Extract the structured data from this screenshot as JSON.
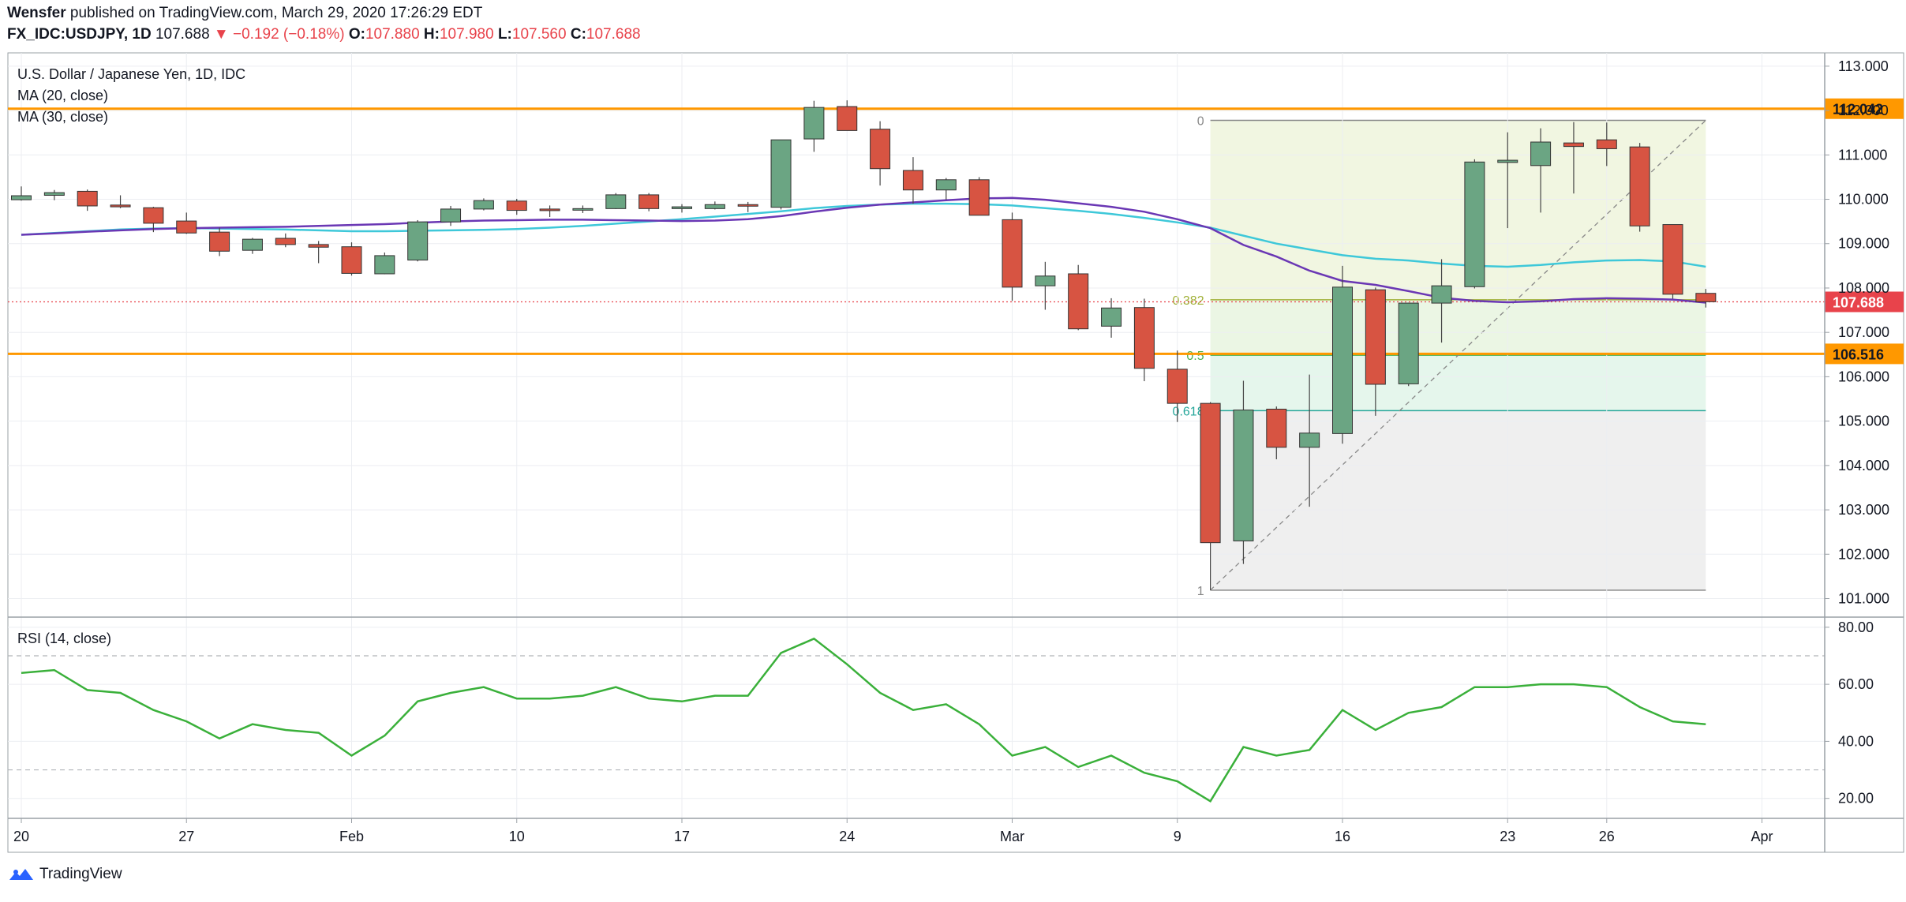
{
  "header": {
    "publisher": "Wensfer",
    "published_text": "published on TradingView.com, March 29, 2020 17:26:29 EDT",
    "symbol": "FX_IDC:USDJPY, 1D",
    "last": "107.688",
    "change_arrow": "▼",
    "change": "−0.192 (−0.18%)",
    "o_label": "O:",
    "o": "107.880",
    "h_label": "H:",
    "h": "107.980",
    "l_label": "L:",
    "l": "107.560",
    "c_label": "C:",
    "c": "107.688"
  },
  "legend": {
    "title": "U.S. Dollar / Japanese Yen, 1D, IDC",
    "ma20": "MA (20, close)",
    "ma30": "MA (30, close)",
    "rsi": "RSI (14, close)"
  },
  "footer": {
    "brand": "TradingView"
  },
  "colors": {
    "up": "#6ba583",
    "down": "#d75442",
    "ma20": "#3ec8d9",
    "ma30": "#6a37b4",
    "rsi": "#3ab03a",
    "hline": "#ff9800",
    "price_label": "#e8434b"
  },
  "chart_data": [
    {
      "type": "candlestick",
      "title": "U.S. Dollar / Japanese Yen, 1D, IDC",
      "ylim": [
        100.6,
        113.3
      ],
      "y_ticks": [
        "113.000",
        "112.000",
        "111.000",
        "110.000",
        "109.000",
        "108.000",
        "107.000",
        "106.000",
        "105.000",
        "104.000",
        "103.000",
        "102.000",
        "101.000"
      ],
      "x_ticks": [
        "20",
        "27",
        "Feb",
        "10",
        "17",
        "24",
        "Mar",
        "9",
        "16",
        "23",
        "26",
        "Apr"
      ],
      "x_tick_index": [
        0,
        5,
        10,
        15,
        20,
        25,
        30,
        35,
        40,
        45,
        48,
        52.7
      ],
      "ohlc": [
        [
          109.99,
          110.29,
          109.97,
          110.08
        ],
        [
          110.09,
          110.21,
          109.98,
          110.15
        ],
        [
          110.18,
          110.22,
          109.74,
          109.85
        ],
        [
          109.87,
          110.09,
          109.8,
          109.83
        ],
        [
          109.81,
          109.83,
          109.26,
          109.46
        ],
        [
          109.51,
          109.7,
          109.22,
          109.24
        ],
        [
          109.26,
          109.36,
          108.72,
          108.83
        ],
        [
          108.85,
          109.13,
          108.77,
          109.1
        ],
        [
          109.12,
          109.23,
          108.92,
          108.98
        ],
        [
          108.98,
          109.06,
          108.56,
          108.92
        ],
        [
          108.93,
          109.03,
          108.28,
          108.33
        ],
        [
          108.32,
          108.8,
          108.31,
          108.73
        ],
        [
          108.63,
          109.53,
          108.6,
          109.49
        ],
        [
          109.49,
          109.85,
          109.4,
          109.78
        ],
        [
          109.78,
          110.02,
          109.75,
          109.97
        ],
        [
          109.96,
          110.01,
          109.65,
          109.75
        ],
        [
          109.78,
          109.86,
          109.6,
          109.76
        ],
        [
          109.76,
          109.86,
          109.69,
          109.79
        ],
        [
          109.79,
          110.14,
          109.78,
          110.1
        ],
        [
          110.1,
          110.14,
          109.73,
          109.79
        ],
        [
          109.79,
          109.89,
          109.7,
          109.83
        ],
        [
          109.79,
          109.95,
          109.77,
          109.88
        ],
        [
          109.88,
          109.94,
          109.71,
          109.86
        ],
        [
          109.82,
          111.34,
          109.77,
          111.34
        ],
        [
          111.36,
          112.22,
          111.07,
          112.07
        ],
        [
          112.09,
          112.23,
          111.55,
          111.55
        ],
        [
          111.58,
          111.76,
          110.31,
          110.69
        ],
        [
          110.65,
          110.95,
          109.9,
          110.21
        ],
        [
          110.21,
          110.48,
          109.99,
          110.44
        ],
        [
          110.44,
          110.5,
          109.64,
          109.64
        ],
        [
          109.54,
          109.7,
          107.71,
          108.02
        ],
        [
          108.05,
          108.59,
          107.51,
          108.27
        ],
        [
          108.32,
          108.52,
          107.05,
          107.08
        ],
        [
          107.14,
          107.77,
          106.88,
          107.55
        ],
        [
          107.56,
          107.76,
          105.9,
          106.19
        ],
        [
          106.17,
          106.59,
          104.98,
          105.4
        ],
        [
          105.4,
          105.43,
          101.19,
          102.26
        ],
        [
          102.3,
          105.91,
          101.78,
          105.25
        ],
        [
          105.27,
          105.33,
          104.14,
          104.41
        ],
        [
          104.41,
          106.05,
          103.07,
          104.73
        ],
        [
          104.72,
          108.5,
          104.49,
          108.02
        ],
        [
          107.96,
          108.01,
          105.12,
          105.83
        ],
        [
          105.84,
          107.67,
          105.79,
          107.66
        ],
        [
          107.66,
          108.65,
          106.77,
          108.05
        ],
        [
          108.03,
          110.9,
          107.99,
          110.84
        ],
        [
          110.83,
          111.51,
          109.35,
          110.88
        ],
        [
          110.76,
          111.6,
          109.7,
          111.29
        ],
        [
          111.27,
          111.74,
          110.13,
          111.19
        ],
        [
          111.34,
          111.73,
          110.75,
          111.14
        ],
        [
          111.18,
          111.27,
          109.27,
          109.4
        ],
        [
          109.43,
          109.43,
          107.76,
          107.86
        ],
        [
          107.88,
          107.98,
          107.56,
          107.69
        ]
      ],
      "ma20": [
        109.2,
        109.24,
        109.28,
        109.32,
        109.34,
        109.35,
        109.34,
        109.33,
        109.32,
        109.3,
        109.28,
        109.28,
        109.29,
        109.3,
        109.31,
        109.33,
        109.36,
        109.4,
        109.45,
        109.5,
        109.55,
        109.61,
        109.67,
        109.73,
        109.8,
        109.85,
        109.88,
        109.9,
        109.9,
        109.89,
        109.86,
        109.8,
        109.74,
        109.67,
        109.58,
        109.48,
        109.36,
        109.18,
        109.0,
        108.87,
        108.74,
        108.66,
        108.62,
        108.55,
        108.5,
        108.48,
        108.52,
        108.58,
        108.62,
        108.63,
        108.6,
        108.48
      ],
      "ma30": [
        109.2,
        109.23,
        109.27,
        109.3,
        109.33,
        109.35,
        109.36,
        109.37,
        109.38,
        109.4,
        109.42,
        109.44,
        109.47,
        109.5,
        109.52,
        109.53,
        109.54,
        109.54,
        109.53,
        109.52,
        109.51,
        109.52,
        109.55,
        109.62,
        109.72,
        109.81,
        109.88,
        109.93,
        109.98,
        110.02,
        110.03,
        109.99,
        109.91,
        109.83,
        109.72,
        109.55,
        109.35,
        108.97,
        108.71,
        108.39,
        108.16,
        108.07,
        107.93,
        107.78,
        107.71,
        107.68,
        107.7,
        107.75,
        107.77,
        107.76,
        107.74,
        107.67
      ],
      "horizontal_lines": [
        {
          "value": 112.042,
          "label": "112.042"
        },
        {
          "value": 106.516,
          "label": "106.516"
        }
      ],
      "last_price": {
        "value": 107.688,
        "label": "107.688"
      },
      "fibonacci": {
        "from_index": 36,
        "to_index": 51,
        "high": 111.78,
        "low": 101.19,
        "levels": [
          {
            "ratio": 0,
            "label": "0"
          },
          {
            "ratio": 0.382,
            "label": "0.382"
          },
          {
            "ratio": 0.5,
            "label": "0.5"
          },
          {
            "ratio": 0.618,
            "label": "0.618"
          },
          {
            "ratio": 1,
            "label": "1"
          }
        ]
      }
    },
    {
      "type": "line",
      "title": "RSI (14, close)",
      "ylim": [
        13,
        83
      ],
      "y_ticks": [
        "80.00",
        "60.00",
        "40.00",
        "20.00"
      ],
      "bands": [
        70,
        30
      ],
      "values": [
        64,
        65,
        58,
        57,
        51,
        47,
        41,
        46,
        44,
        43,
        35,
        42,
        54,
        57,
        59,
        55,
        55,
        56,
        59,
        55,
        54,
        56,
        56,
        71,
        76,
        67,
        57,
        51,
        53,
        46,
        35,
        38,
        31,
        35,
        29,
        26,
        19,
        38,
        35,
        37,
        51,
        44,
        50,
        52,
        59,
        59,
        60,
        60,
        59,
        52,
        47,
        46
      ]
    }
  ]
}
